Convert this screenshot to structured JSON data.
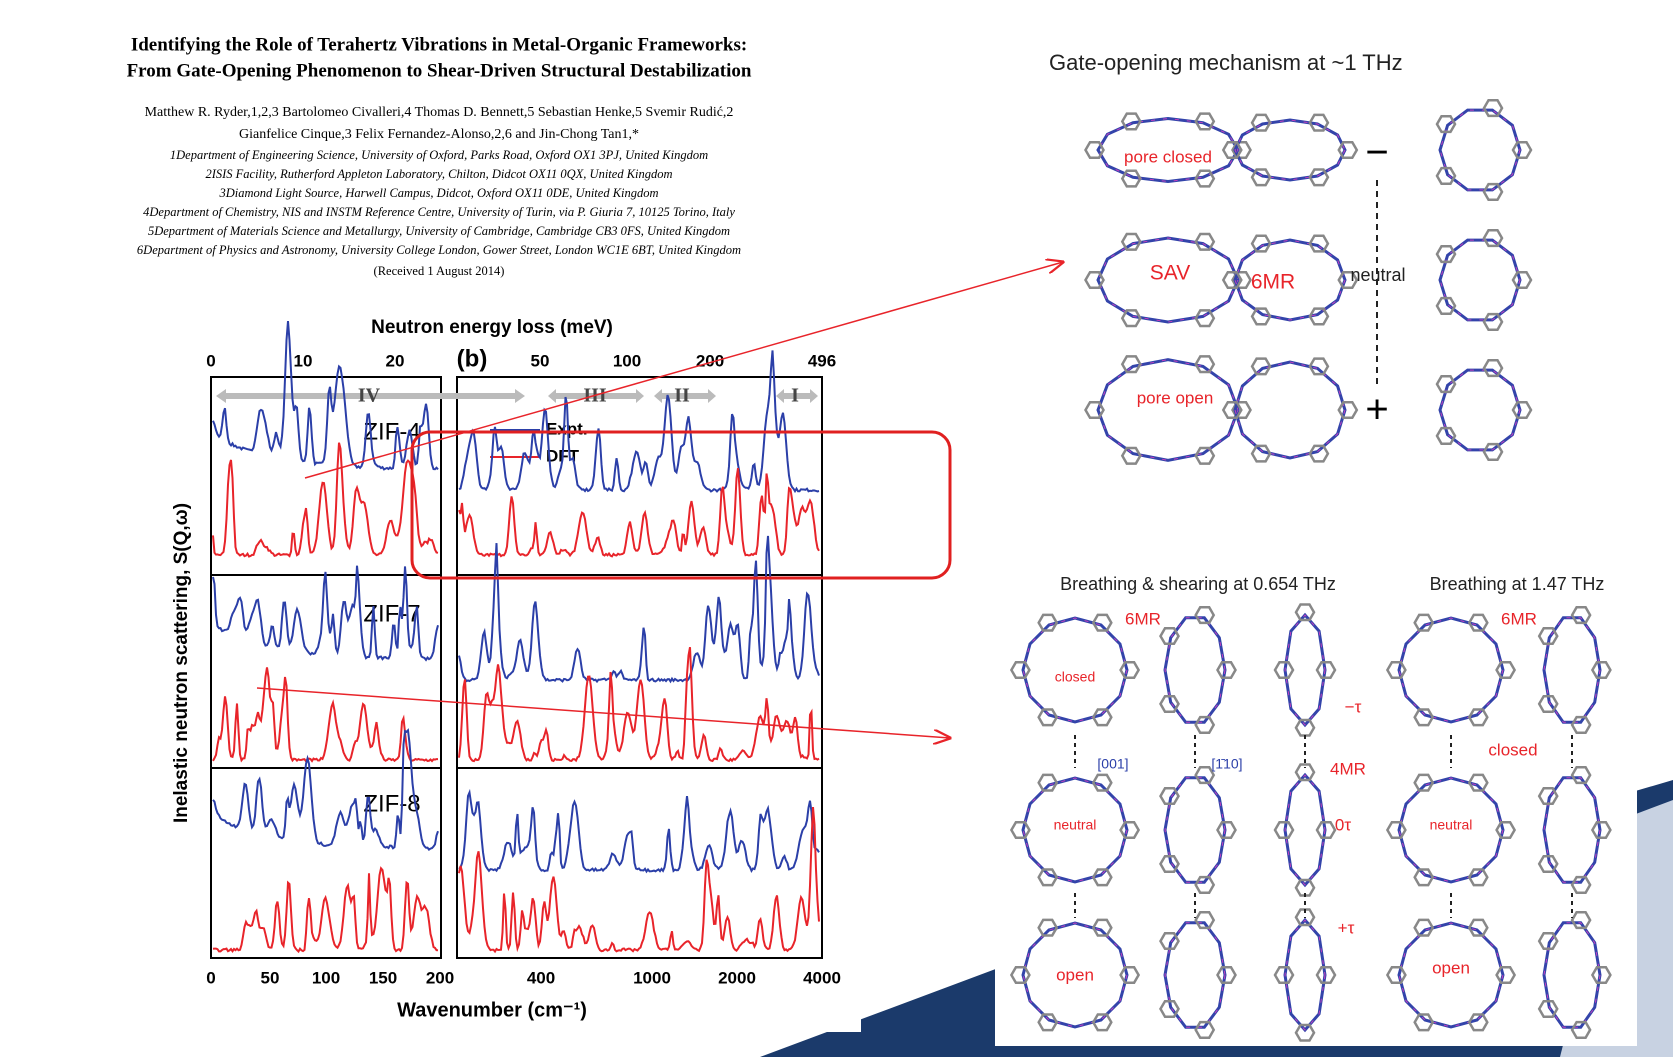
{
  "paper": {
    "title_line1": "Identifying the Role of Terahertz Vibrations in Metal-Organic Frameworks:",
    "title_line2": "From Gate-Opening Phenomenon to Shear-Driven Structural Destabilization",
    "authors_line1": "Matthew R. Ryder,1,2,3 Bartolomeo Civalleri,4 Thomas D. Bennett,5 Sebastian Henke,5 Svemir Rudić,2",
    "authors_line2": "Gianfelice Cinque,3 Felix Fernandez-Alonso,2,6 and Jin-Chong Tan1,*",
    "affiliations": [
      "1Department of Engineering Science, University of Oxford, Parks Road, Oxford OX1 3PJ, United Kingdom",
      "2ISIS Facility, Rutherford Appleton Laboratory, Chilton, Didcot OX11 0QX, United Kingdom",
      "3Diamond Light Source, Harwell Campus, Didcot, Oxford OX11 0DE, United Kingdom",
      "4Department of Chemistry, NIS and INSTM Reference Centre, University of Turin, via P. Giuria 7, 10125 Torino, Italy",
      "5Department of Materials Science and Metallurgy, University of Cambridge, Cambridge CB3 0FS, United Kingdom",
      "6Department of Physics and Astronomy, University College London, Gower Street, London WC1E 6BT, United Kingdom"
    ],
    "received": "(Received 1 August 2014)"
  },
  "figure": {
    "top_axis_label": "Neutron energy loss (meV)",
    "top_ticks_a": [
      "0",
      "10",
      "20"
    ],
    "panel_label": "(b)",
    "top_ticks_b": [
      "50",
      "100",
      "200",
      "496"
    ],
    "regions": [
      "IV",
      "III",
      "II",
      "I"
    ],
    "y_label": "Inelastic neutron scattering, S(Q,ω)",
    "samples": [
      "ZIF-4",
      "ZIF-7",
      "ZIF-8"
    ],
    "legend": [
      "Expt.",
      "DFT"
    ],
    "bottom_ticks_a": [
      "0",
      "50",
      "100",
      "150",
      "200"
    ],
    "bottom_ticks_b": [
      "400",
      "1000",
      "2000",
      "4000"
    ],
    "x_label": "Wavenumber (cm⁻¹)"
  },
  "gate": {
    "title": "Gate-opening mechanism at ~1 THz",
    "pore_closed": "pore closed",
    "sav": "SAV",
    "six_mr": "6MR",
    "neutral": "neutral",
    "pore_open": "pore open",
    "minus": "−",
    "plus": "+"
  },
  "breathing": {
    "title_left": "Breathing & shearing at 0.654 THz",
    "title_right": "Breathing at 1.47 THz",
    "six_mr_left": "6MR",
    "closed_left": "closed",
    "dir_001": "[001]",
    "dir_110": "[1̄10]",
    "four_mr": "4MR",
    "zero_tau": "0τ",
    "minus_tau": "−τ",
    "plus_tau": "+τ",
    "neutral_left": "neutral",
    "open_left": "open",
    "six_mr_right": "6MR",
    "closed_right": "closed",
    "neutral_right": "neutral",
    "open_right": "open"
  }
}
